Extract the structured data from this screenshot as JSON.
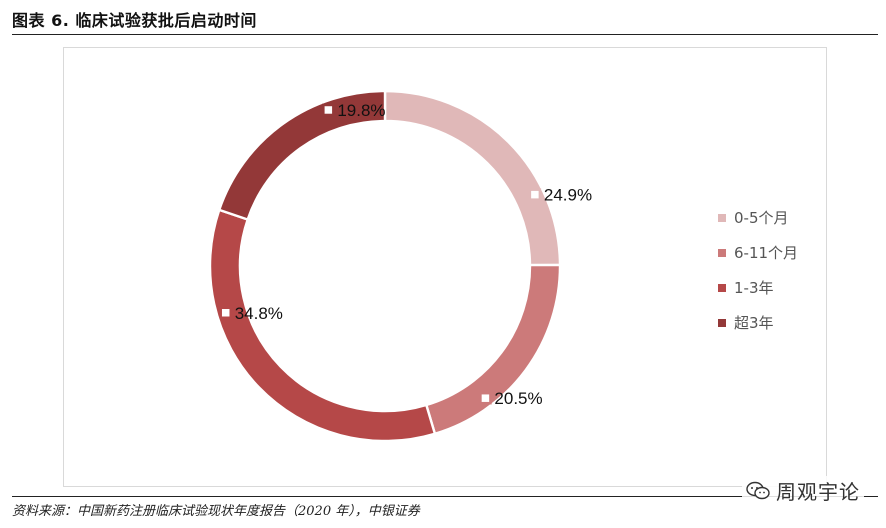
{
  "figure_title": "图表 6. 临床试验获批后启动时间",
  "source_note": "资料来源：中国新药注册临床试验现状年度报告（2020 年），中银证券",
  "watermark_text": "周观宇论",
  "chart_data": {
    "type": "pie",
    "subtype": "donut",
    "title": "",
    "legend_position": "right",
    "categories": [
      "0-5个月",
      "6-11个月",
      "1-3年",
      "超3年"
    ],
    "values": [
      24.9,
      20.5,
      34.8,
      19.8
    ],
    "labels": [
      "24.9%",
      "20.5%",
      "34.8%",
      "19.8%"
    ],
    "colors": [
      "#e0b8b8",
      "#cc7a7a",
      "#b54848",
      "#933838"
    ]
  }
}
